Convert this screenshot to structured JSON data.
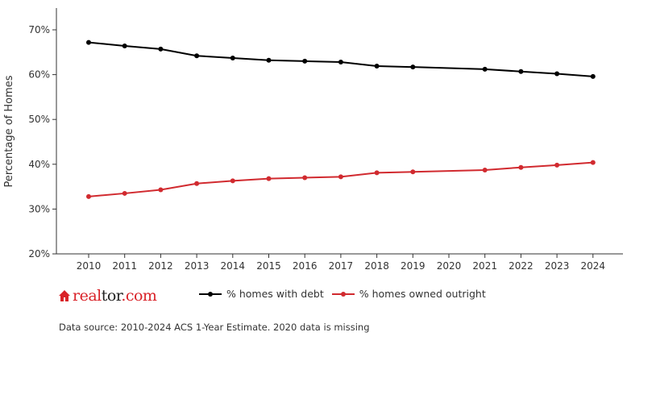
{
  "chart_data": {
    "type": "line",
    "ylabel": "Percentage of Homes",
    "xlabel": "",
    "categories": [
      "2010",
      "2011",
      "2012",
      "2013",
      "2014",
      "2015",
      "2016",
      "2017",
      "2018",
      "2019",
      "2020",
      "2021",
      "2022",
      "2023",
      "2024"
    ],
    "ylim": [
      20,
      75
    ],
    "yticks": [
      20,
      30,
      40,
      50,
      60,
      70
    ],
    "ytick_labels": [
      "20%",
      "30%",
      "40%",
      "50%",
      "60%",
      "70%"
    ],
    "grid": false,
    "legend_position": "bottom",
    "series": [
      {
        "name": "% homes with debt",
        "color": "#000000",
        "x": [
          "2010",
          "2011",
          "2012",
          "2013",
          "2014",
          "2015",
          "2016",
          "2017",
          "2018",
          "2019",
          "2021",
          "2022",
          "2023",
          "2024"
        ],
        "values": [
          67.2,
          66.4,
          65.7,
          64.2,
          63.7,
          63.2,
          63.0,
          62.8,
          61.9,
          61.7,
          61.2,
          60.7,
          60.2,
          59.6
        ]
      },
      {
        "name": "% homes owned outright",
        "color": "#d12a2f",
        "x": [
          "2010",
          "2011",
          "2012",
          "2013",
          "2014",
          "2015",
          "2016",
          "2017",
          "2018",
          "2019",
          "2021",
          "2022",
          "2023",
          "2024"
        ],
        "values": [
          32.8,
          33.5,
          34.3,
          35.7,
          36.3,
          36.8,
          37.0,
          37.2,
          38.1,
          38.3,
          38.7,
          39.3,
          39.8,
          40.4
        ]
      }
    ]
  },
  "logo": {
    "text_part1": "real",
    "text_part2": "tor",
    "text_part3": ".com",
    "brand_color": "#d92228"
  },
  "source_note": "Data source: 2010-2024 ACS 1-Year Estimate. 2020 data is missing"
}
